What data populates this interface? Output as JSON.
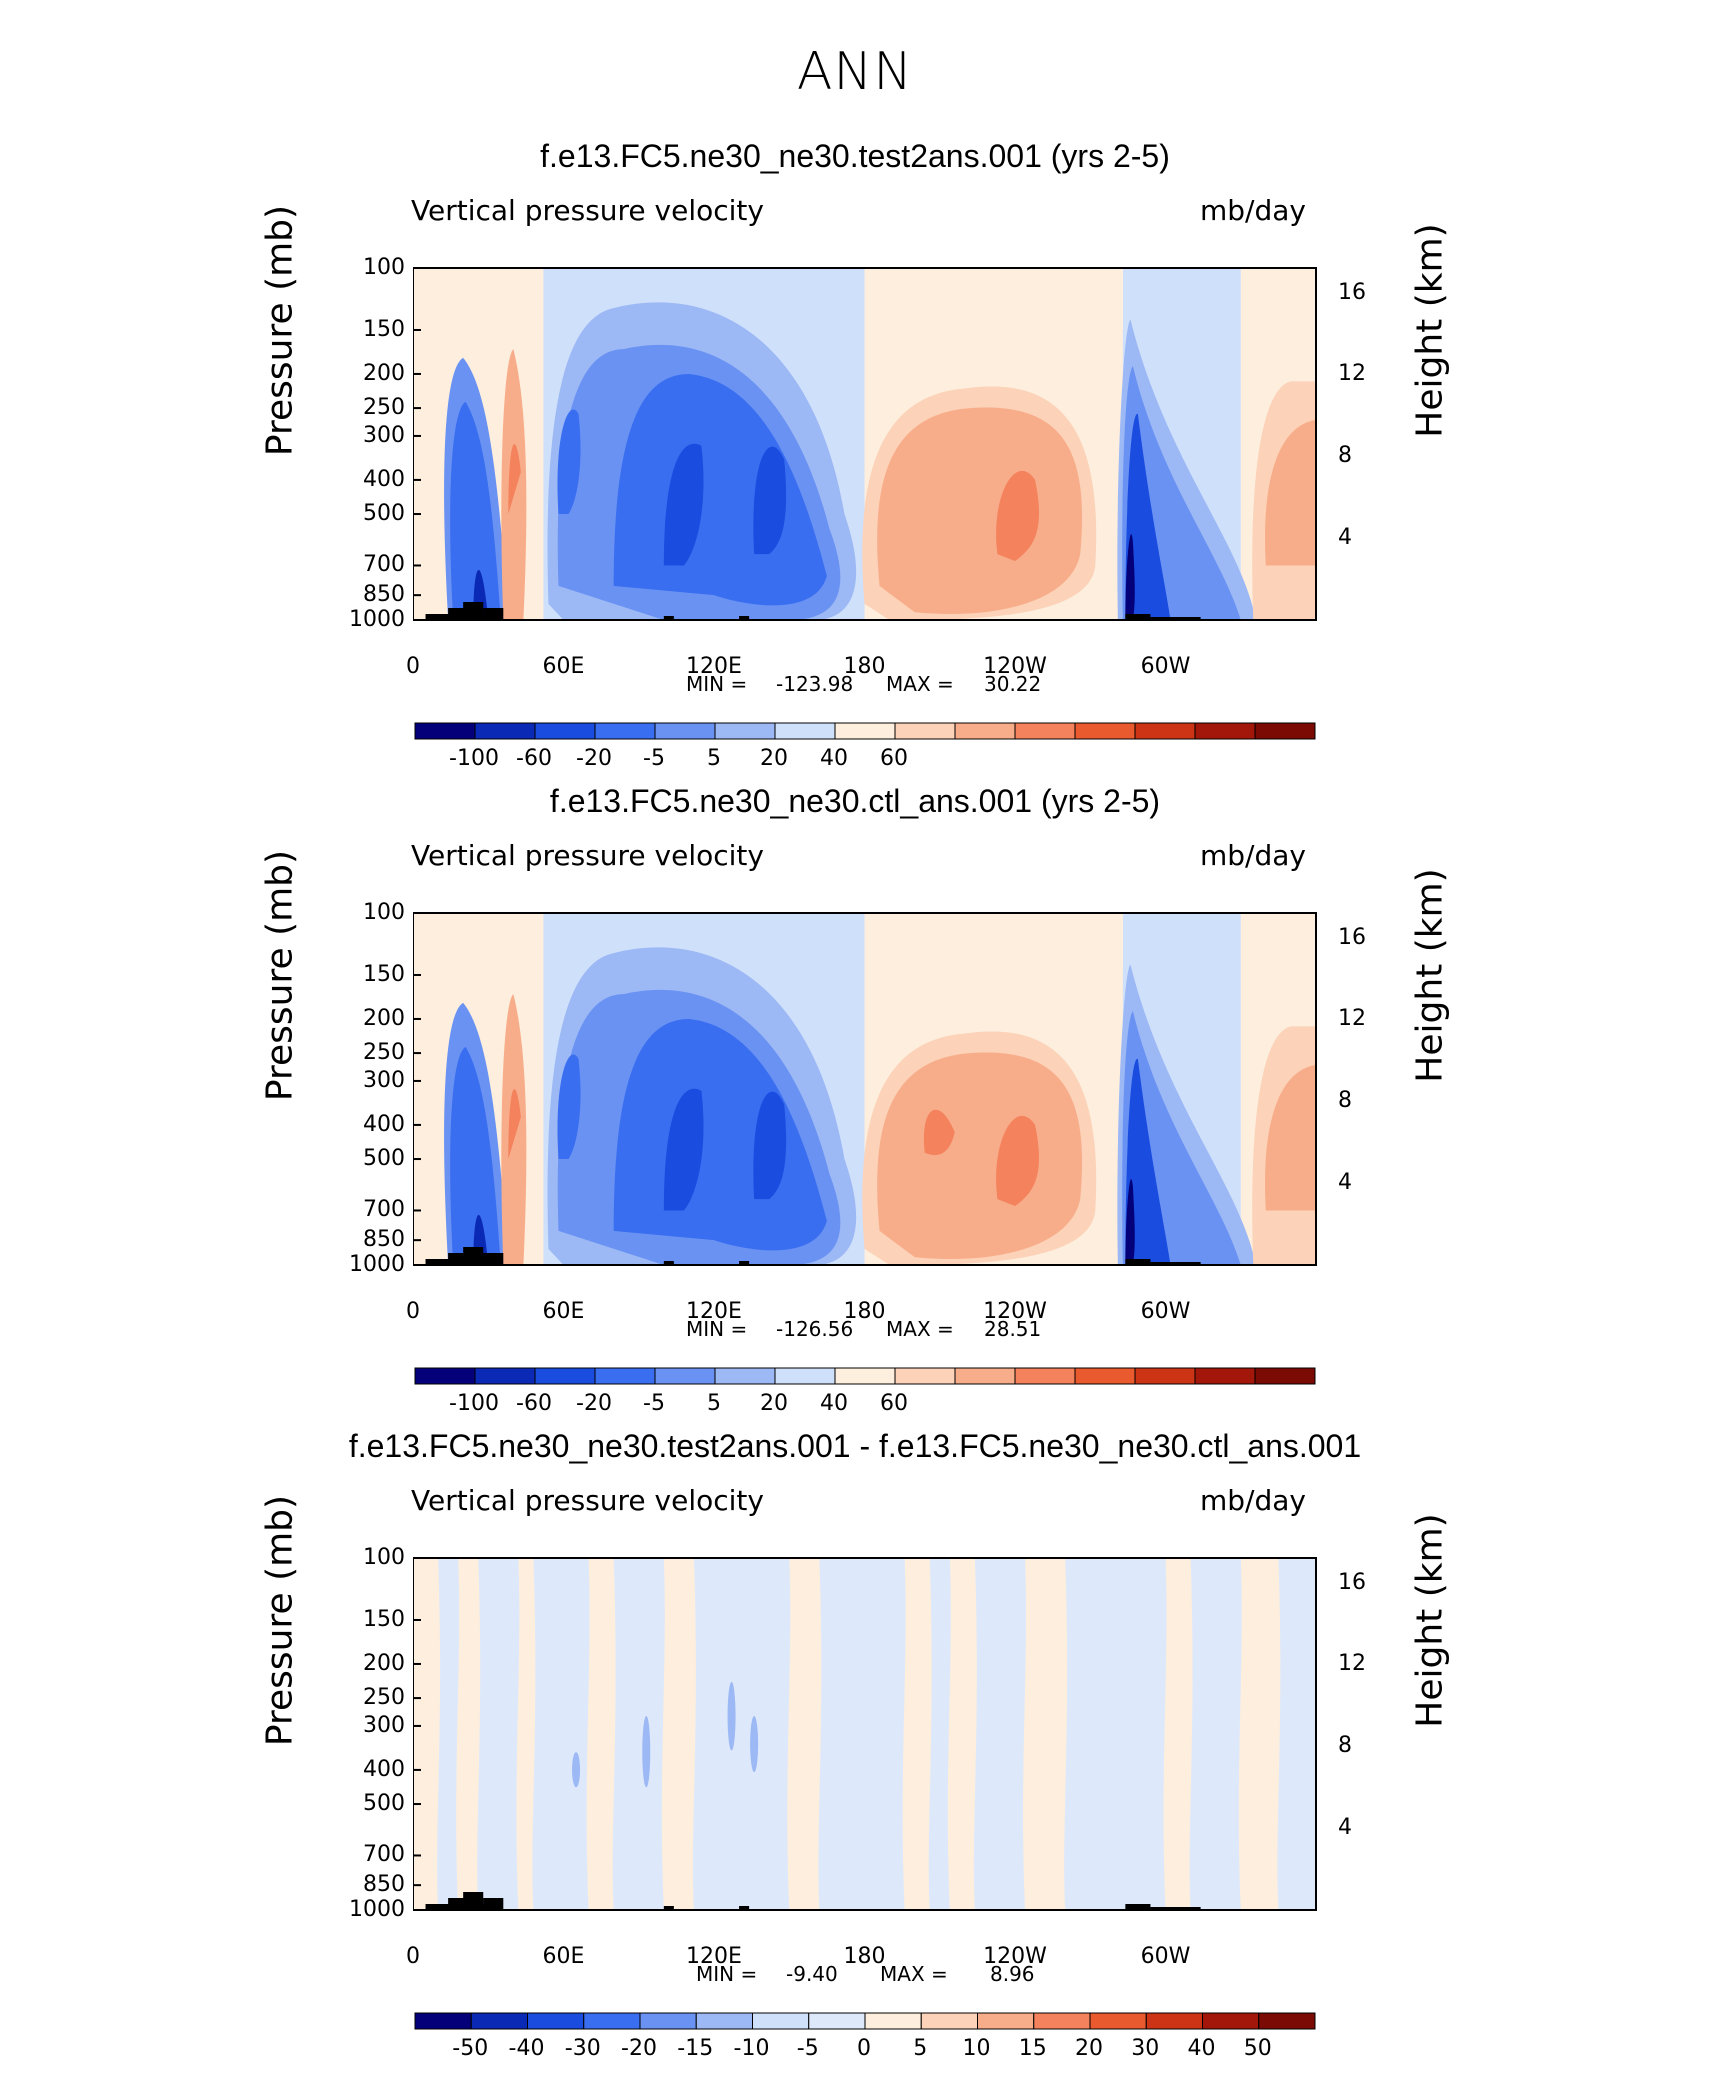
{
  "figure_title": "ANN",
  "chart_data": [
    {
      "type": "heatmap",
      "title": "f.e13.FC5.ne30_ne30.test2ans.001 (yrs 2-5)",
      "variable": "Vertical pressure velocity",
      "units": "mb/day",
      "xlabel": "",
      "ylabel": "Pressure (mb)",
      "ylabel_right": "Height (km)",
      "x_ticks": [
        "0",
        "60E",
        "120E",
        "180",
        "120W",
        "60W"
      ],
      "y_ticks": [
        "100",
        "150",
        "200",
        "250",
        "300",
        "400",
        "500",
        "700",
        "850",
        "1000"
      ],
      "height_ticks": [
        "16",
        "12",
        "8",
        "4"
      ],
      "xlim": [
        0,
        360
      ],
      "ylim": [
        1000,
        100
      ],
      "min_label": "MIN =",
      "min": "-123.98",
      "max_label": "MAX =",
      "max": "30.22",
      "colorbar_labels": [
        "-100",
        "-60",
        "-20",
        "-5",
        "5",
        "20",
        "40",
        "60"
      ],
      "colorbar_colors": [
        "#03007a",
        "#0a29b4",
        "#1a4ce0",
        "#3a6ef0",
        "#6992f2",
        "#9cb8f5",
        "#cfe0fa",
        "#fdeedd",
        "#fcd2b8",
        "#f8ad8a",
        "#f3825d",
        "#ea5a2f",
        "#cc3415",
        "#a3170a",
        "#7a0a03"
      ]
    },
    {
      "type": "heatmap",
      "title": "f.e13.FC5.ne30_ne30.ctl_ans.001 (yrs 2-5)",
      "variable": "Vertical pressure velocity",
      "units": "mb/day",
      "xlabel": "",
      "ylabel": "Pressure (mb)",
      "ylabel_right": "Height (km)",
      "x_ticks": [
        "0",
        "60E",
        "120E",
        "180",
        "120W",
        "60W"
      ],
      "y_ticks": [
        "100",
        "150",
        "200",
        "250",
        "300",
        "400",
        "500",
        "700",
        "850",
        "1000"
      ],
      "height_ticks": [
        "16",
        "12",
        "8",
        "4"
      ],
      "xlim": [
        0,
        360
      ],
      "ylim": [
        1000,
        100
      ],
      "min_label": "MIN =",
      "min": "-126.56",
      "max_label": "MAX =",
      "max": "28.51",
      "colorbar_labels": [
        "-100",
        "-60",
        "-20",
        "-5",
        "5",
        "20",
        "40",
        "60"
      ],
      "colorbar_colors": [
        "#03007a",
        "#0a29b4",
        "#1a4ce0",
        "#3a6ef0",
        "#6992f2",
        "#9cb8f5",
        "#cfe0fa",
        "#fdeedd",
        "#fcd2b8",
        "#f8ad8a",
        "#f3825d",
        "#ea5a2f",
        "#cc3415",
        "#a3170a",
        "#7a0a03"
      ]
    },
    {
      "type": "heatmap",
      "title": "f.e13.FC5.ne30_ne30.test2ans.001 - f.e13.FC5.ne30_ne30.ctl_ans.001",
      "variable": "Vertical pressure velocity",
      "units": "mb/day",
      "xlabel": "",
      "ylabel": "Pressure (mb)",
      "ylabel_right": "Height (km)",
      "x_ticks": [
        "0",
        "60E",
        "120E",
        "180",
        "120W",
        "60W"
      ],
      "y_ticks": [
        "100",
        "150",
        "200",
        "250",
        "300",
        "400",
        "500",
        "700",
        "850",
        "1000"
      ],
      "height_ticks": [
        "16",
        "12",
        "8",
        "4"
      ],
      "xlim": [
        0,
        360
      ],
      "ylim": [
        1000,
        100
      ],
      "min_label": "MIN =",
      "min": "-9.40",
      "max_label": "MAX =",
      "max": "8.96",
      "colorbar_labels": [
        "-50",
        "-40",
        "-30",
        "-20",
        "-15",
        "-10",
        "-5",
        "0",
        "5",
        "10",
        "15",
        "20",
        "30",
        "40",
        "50"
      ],
      "colorbar_colors": [
        "#03007a",
        "#0a29b4",
        "#1a4ce0",
        "#3a6ef0",
        "#6992f2",
        "#9cb8f5",
        "#cfe0fa",
        "#dde9fb",
        "#fdeedd",
        "#fcd2b8",
        "#f8ad8a",
        "#f3825d",
        "#ea5a2f",
        "#cc3415",
        "#a3170a",
        "#7a0a03"
      ]
    }
  ]
}
